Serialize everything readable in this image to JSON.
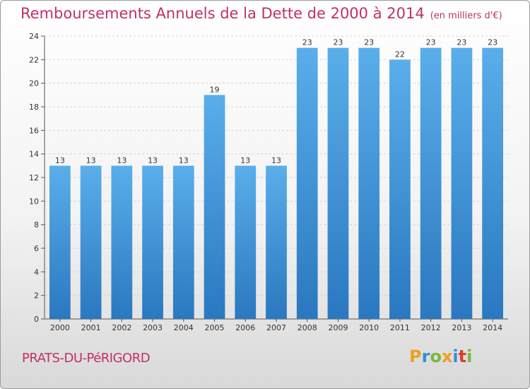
{
  "title": "Remboursements Annuels de la Dette de 2000 à 2014",
  "unit": "(en milliers d'€)",
  "place": "PRATS-DU-PéRIGORD",
  "brand": {
    "letters": [
      "P",
      "r",
      "o",
      "x",
      "i",
      "t",
      "i"
    ],
    "colors": [
      "#f0a020",
      "#2f8fd6",
      "#7ab83a",
      "#f0a020",
      "#2f8fd6",
      "#e0392e",
      "#7ab83a"
    ]
  },
  "colors": {
    "bar": "#4a9ee0",
    "bar_dark": "#2a78c0",
    "accent": "#c0306a"
  },
  "chart_data": {
    "type": "bar",
    "categories": [
      "2000",
      "2001",
      "2002",
      "2003",
      "2004",
      "2005",
      "2006",
      "2007",
      "2008",
      "2009",
      "2010",
      "2011",
      "2012",
      "2013",
      "2014"
    ],
    "values": [
      13,
      13,
      13,
      13,
      13,
      19,
      13,
      13,
      23,
      23,
      23,
      22,
      23,
      23,
      23
    ],
    "title": "Remboursements Annuels de la Dette de 2000 à 2014",
    "ylim": [
      0,
      24
    ],
    "yticks": [
      0,
      2,
      4,
      6,
      8,
      10,
      12,
      14,
      16,
      18,
      20,
      22,
      24
    ],
    "grid": true
  }
}
